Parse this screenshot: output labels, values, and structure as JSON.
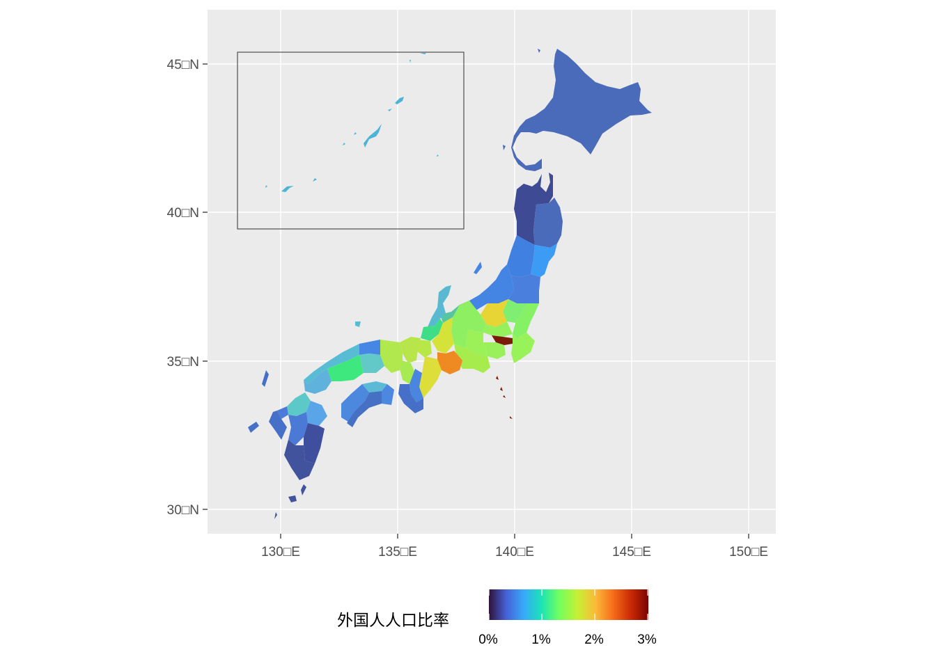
{
  "map": {
    "y_axis_labels": [
      "45□N",
      "40□N",
      "35□N",
      "30□N"
    ],
    "x_axis_labels": [
      "130□E",
      "135□E",
      "140□E",
      "145□E",
      "150□E"
    ],
    "lat_values": [
      45,
      40,
      35,
      30
    ],
    "lon_values": [
      130,
      135,
      140,
      145,
      150
    ],
    "panel_background": "#ebebeb",
    "grid_color": "#ffffff",
    "inset_box_color": "#4d4d4d",
    "inset_description": "Okinawa inset"
  },
  "legend": {
    "title": "外国人人口比率",
    "tick_labels": [
      "0%",
      "1%",
      "2%",
      "3%"
    ],
    "tick_values": [
      0,
      1,
      2,
      3
    ],
    "range": [
      0,
      3
    ],
    "palette": [
      "#30123b",
      "#4662d7",
      "#36aaf9",
      "#1ae4b6",
      "#72fe5e",
      "#c8ef34",
      "#faba39",
      "#f66b19",
      "#ca2a04",
      "#7a0403"
    ]
  },
  "regions": [
    {
      "name": "Hokkaido",
      "value": 0.6
    },
    {
      "name": "Aomori",
      "value": 0.2
    },
    {
      "name": "Iwate",
      "value": 0.5
    },
    {
      "name": "Miyagi",
      "value": 0.9
    },
    {
      "name": "Akita",
      "value": 0.3
    },
    {
      "name": "Yamagata",
      "value": 0.7
    },
    {
      "name": "Fukushima",
      "value": 0.8
    },
    {
      "name": "Ibaraki",
      "value": 2.0
    },
    {
      "name": "Tochigi",
      "value": 1.9
    },
    {
      "name": "Gunma",
      "value": 2.4
    },
    {
      "name": "Saitama",
      "value": 1.9
    },
    {
      "name": "Chiba",
      "value": 2.0
    },
    {
      "name": "Tokyo",
      "value": 3.0
    },
    {
      "name": "Kanagawa",
      "value": 2.0
    },
    {
      "name": "Niigata",
      "value": 0.8
    },
    {
      "name": "Toyama",
      "value": 1.3
    },
    {
      "name": "Ishikawa",
      "value": 1.1
    },
    {
      "name": "Fukui",
      "value": 1.5
    },
    {
      "name": "Yamanashi",
      "value": 2.0
    },
    {
      "name": "Nagano",
      "value": 1.7
    },
    {
      "name": "Gifu",
      "value": 2.2
    },
    {
      "name": "Shizuoka",
      "value": 2.1
    },
    {
      "name": "Aichi",
      "value": 2.7
    },
    {
      "name": "Mie",
      "value": 2.2
    },
    {
      "name": "Shiga",
      "value": 1.8
    },
    {
      "name": "Kyoto",
      "value": 1.7
    },
    {
      "name": "Osaka",
      "value": 2.0
    },
    {
      "name": "Hyogo",
      "value": 1.7
    },
    {
      "name": "Nara",
      "value": 0.8
    },
    {
      "name": "Wakayama",
      "value": 0.6
    },
    {
      "name": "Tottori",
      "value": 0.9
    },
    {
      "name": "Shimane",
      "value": 1.2
    },
    {
      "name": "Okayama",
      "value": 1.3
    },
    {
      "name": "Hiroshima",
      "value": 1.6
    },
    {
      "name": "Yamaguchi",
      "value": 1.1
    },
    {
      "name": "Tokushima",
      "value": 0.8
    },
    {
      "name": "Kagawa",
      "value": 1.2
    },
    {
      "name": "Ehime",
      "value": 0.8
    },
    {
      "name": "Kochi",
      "value": 0.6
    },
    {
      "name": "Fukuoka",
      "value": 1.2
    },
    {
      "name": "Saga",
      "value": 0.8
    },
    {
      "name": "Nagasaki",
      "value": 0.7
    },
    {
      "name": "Kumamoto",
      "value": 0.8
    },
    {
      "name": "Oita",
      "value": 0.9
    },
    {
      "name": "Miyazaki",
      "value": 0.5
    },
    {
      "name": "Kagoshima",
      "value": 0.5
    },
    {
      "name": "Okinawa",
      "value": 1.2
    }
  ]
}
